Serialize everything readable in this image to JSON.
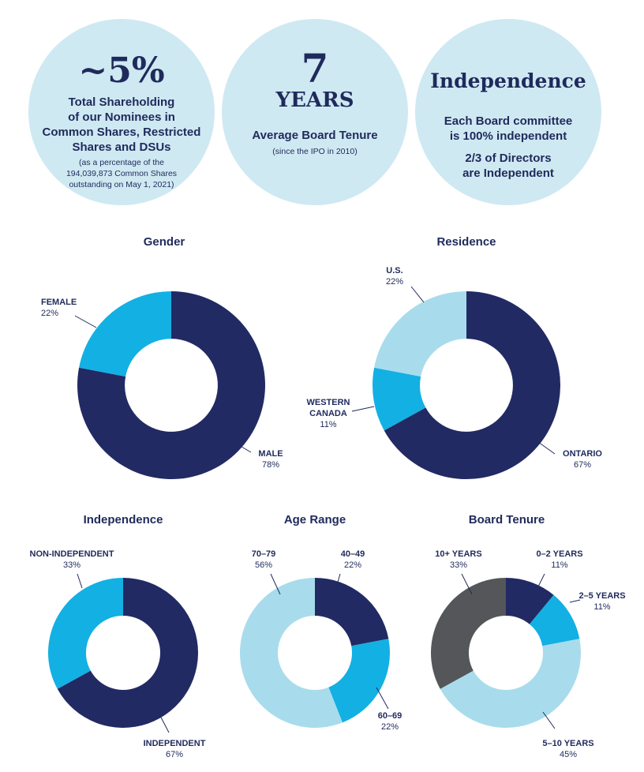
{
  "stats": {
    "shareholding": {
      "value": "~5%",
      "line1": "Total Shareholding",
      "line2": "of our Nominees in",
      "line3": "Common Shares, Restricted",
      "line4": "Shares and DSUs",
      "note1": "(as a percentage of the",
      "note2": "194,039,873 Common Shares",
      "note3": "outstanding on May 1, 2021)"
    },
    "tenure": {
      "value": "7",
      "unit": "YEARS",
      "label": "Average Board Tenure",
      "note": "(since the IPO in 2010)"
    },
    "independence": {
      "value": "Independence",
      "line1": "Each Board committee",
      "line2": "is 100% independent",
      "line3": "2/3 of Directors",
      "line4": "are Independent"
    }
  },
  "colors": {
    "navy": "#212a63",
    "bright_blue": "#13b0e3",
    "light_blue": "#a8dcec",
    "gray": "#545659",
    "circle_bg": "#cfe9f2"
  },
  "chart_data": [
    {
      "type": "pie",
      "title": "Gender",
      "slices": [
        {
          "name": "MALE",
          "value": 78,
          "label": "78%",
          "color": "#212a63"
        },
        {
          "name": "FEMALE",
          "value": 22,
          "label": "22%",
          "color": "#13b0e3"
        }
      ]
    },
    {
      "type": "pie",
      "title": "Residence",
      "slices": [
        {
          "name": "ONTARIO",
          "value": 67,
          "label": "67%",
          "color": "#212a63"
        },
        {
          "name": "WESTERN CANADA",
          "value": 11,
          "label": "11%",
          "color": "#13b0e3"
        },
        {
          "name": "U.S.",
          "value": 22,
          "label": "22%",
          "color": "#a8dcec"
        }
      ]
    },
    {
      "type": "pie",
      "title": "Independence",
      "slices": [
        {
          "name": "INDEPENDENT",
          "value": 67,
          "label": "67%",
          "color": "#212a63"
        },
        {
          "name": "NON-INDEPENDENT",
          "value": 33,
          "label": "33%",
          "color": "#13b0e3"
        }
      ]
    },
    {
      "type": "pie",
      "title": "Age Range",
      "slices": [
        {
          "name": "40–49",
          "value": 22,
          "label": "22%",
          "color": "#212a63"
        },
        {
          "name": "60–69",
          "value": 22,
          "label": "22%",
          "color": "#13b0e3"
        },
        {
          "name": "70–79",
          "value": 56,
          "label": "56%",
          "color": "#a8dcec"
        }
      ]
    },
    {
      "type": "pie",
      "title": "Board Tenure",
      "slices": [
        {
          "name": "0–2 YEARS",
          "value": 11,
          "label": "11%",
          "color": "#212a63"
        },
        {
          "name": "2–5 YEARS",
          "value": 11,
          "label": "11%",
          "color": "#13b0e3"
        },
        {
          "name": "5–10 YEARS",
          "value": 45,
          "label": "45%",
          "color": "#a8dcec"
        },
        {
          "name": "10+ YEARS",
          "value": 33,
          "label": "33%",
          "color": "#545659"
        }
      ]
    }
  ]
}
